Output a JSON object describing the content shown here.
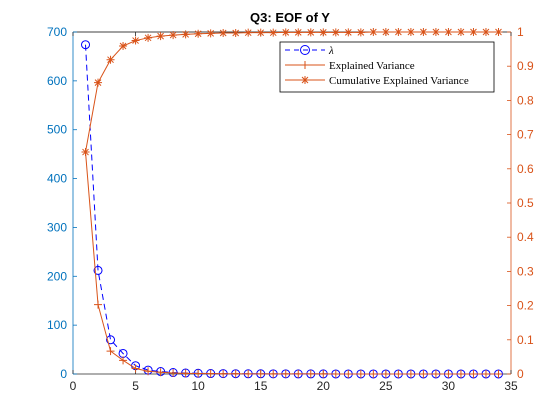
{
  "chart_data": {
    "type": "line",
    "title": "Q3: EOF of Y",
    "xlim": [
      0,
      35
    ],
    "xticks": [
      0,
      5,
      10,
      15,
      20,
      25,
      30,
      35
    ],
    "y_left": {
      "lim": [
        0,
        700
      ],
      "ticks": [
        0,
        100,
        200,
        300,
        400,
        500,
        600,
        700
      ],
      "color": "#0072BD"
    },
    "y_right": {
      "lim": [
        0,
        1
      ],
      "ticks": [
        0,
        0.1,
        0.2,
        0.3,
        0.4,
        0.5,
        0.6,
        0.7,
        0.8,
        0.9,
        1
      ],
      "color": "#D95319"
    },
    "x": [
      1,
      2,
      3,
      4,
      5,
      6,
      7,
      8,
      9,
      10,
      11,
      12,
      13,
      14,
      15,
      16,
      17,
      18,
      19,
      20,
      21,
      22,
      23,
      24,
      25,
      26,
      27,
      28,
      29,
      30,
      31,
      32,
      33,
      34
    ],
    "series": [
      {
        "name": "λ",
        "axis": "left",
        "color": "#0000FF",
        "line": "dashed",
        "marker": "circle",
        "values": [
          674,
          212,
          70,
          42,
          17,
          8,
          5,
          3,
          2,
          1.5,
          1,
          0.8,
          0.6,
          0.5,
          0.4,
          0.3,
          0.3,
          0.2,
          0.2,
          0.2,
          0.1,
          0.1,
          0.1,
          0.1,
          0.1,
          0.1,
          0.1,
          0.1,
          0.1,
          0.1,
          0.1,
          0.1,
          0.1,
          0.1
        ]
      },
      {
        "name": "Explained Variance",
        "axis": "right",
        "color": "#D95319",
        "line": "solid",
        "marker": "plus",
        "values": [
          0.649,
          0.203,
          0.067,
          0.04,
          0.016,
          0.008,
          0.005,
          0.003,
          0.002,
          0.0015,
          0.001,
          0.0008,
          0.0006,
          0.0005,
          0.0004,
          0.0003,
          0.0003,
          0.0002,
          0.0002,
          0.0002,
          0.0001,
          0.0001,
          0.0001,
          0.0001,
          0.0001,
          0.0001,
          0.0001,
          0.0001,
          0.0001,
          0.0001,
          0.0001,
          0.0001,
          0.0001,
          0.0001
        ]
      },
      {
        "name": "Cumulative Explained Variance",
        "axis": "right",
        "color": "#D95319",
        "line": "solid",
        "marker": "asterisk",
        "values": [
          0.649,
          0.852,
          0.919,
          0.959,
          0.975,
          0.983,
          0.988,
          0.991,
          0.993,
          0.995,
          0.996,
          0.997,
          0.997,
          0.998,
          0.998,
          0.998,
          0.999,
          0.999,
          0.999,
          0.999,
          0.999,
          0.999,
          0.999,
          1,
          1,
          1,
          1,
          1,
          1,
          1,
          1,
          1,
          1,
          1
        ]
      }
    ],
    "legend": {
      "placement": "top-right",
      "entries": [
        "λ",
        "Explained Variance",
        "Cumulative Explained Variance"
      ]
    },
    "grid": false
  }
}
